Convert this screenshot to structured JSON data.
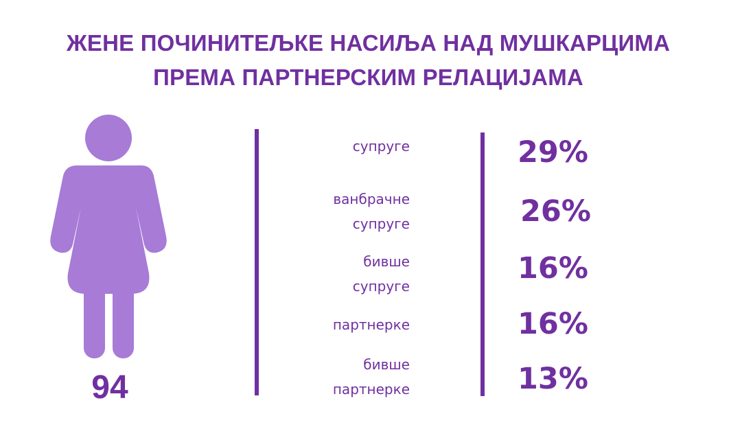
{
  "title": {
    "line1": "ЖЕНЕ ПОЧИНИТЕЉКЕ НАСИЉА НАД МУШКАРЦИМА",
    "line2": "ПРЕМА ПАРТНЕРСКИМ РЕЛАЦИЈАМА"
  },
  "figure": {
    "icon": "woman-icon",
    "color": "#a77bd6"
  },
  "total": "94",
  "colors": {
    "text": "#7030a0",
    "lines": "#7030a0",
    "icon": "#a77bd6"
  },
  "chart_data": {
    "type": "table",
    "title": "ЖЕНЕ ПОЧИНИТЕЉКЕ НАСИЉА НАД МУШКАРЦИМА ПРЕМА ПАРТНЕРСКИМ РЕЛАЦИЈАМА",
    "total": 94,
    "rows": [
      {
        "label_lines": [
          "супруге"
        ],
        "value": 29,
        "value_label": "29%"
      },
      {
        "label_lines": [
          "ванбрачне",
          "супруге"
        ],
        "value": 26,
        "value_label": "26%"
      },
      {
        "label_lines": [
          "бивше",
          "супруге"
        ],
        "value": 16,
        "value_label": "16%"
      },
      {
        "label_lines": [
          "партнерке"
        ],
        "value": 16,
        "value_label": "16%"
      },
      {
        "label_lines": [
          "бивше",
          "партнерке"
        ],
        "value": 13,
        "value_label": "13%"
      }
    ]
  }
}
